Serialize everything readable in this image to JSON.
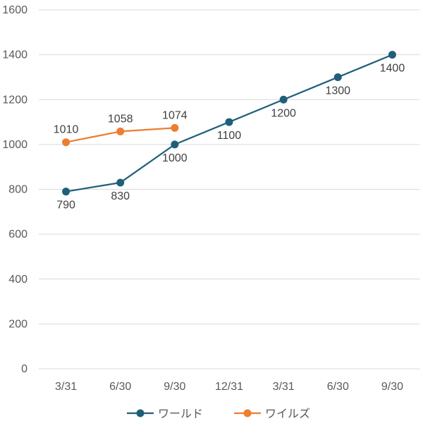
{
  "chart_data": {
    "type": "line",
    "categories": [
      "3/31",
      "6/30",
      "9/30",
      "12/31",
      "3/31",
      "6/30",
      "9/30"
    ],
    "series": [
      {
        "name": "ワールド",
        "color": "#1f5f7a",
        "values": [
          790,
          830,
          1000,
          1100,
          1200,
          1300,
          1400
        ],
        "label_position": "below"
      },
      {
        "name": "ワイルズ",
        "color": "#ed7d31",
        "values": [
          1010,
          1058,
          1074,
          null,
          null,
          null,
          null
        ],
        "label_position": "above"
      }
    ],
    "yticks": [
      0,
      200,
      400,
      600,
      800,
      1000,
      1200,
      1400,
      1600
    ],
    "ylim": [
      0,
      1600
    ],
    "grid": true,
    "legend": "bottom",
    "title": "",
    "xlabel": "",
    "ylabel": ""
  }
}
